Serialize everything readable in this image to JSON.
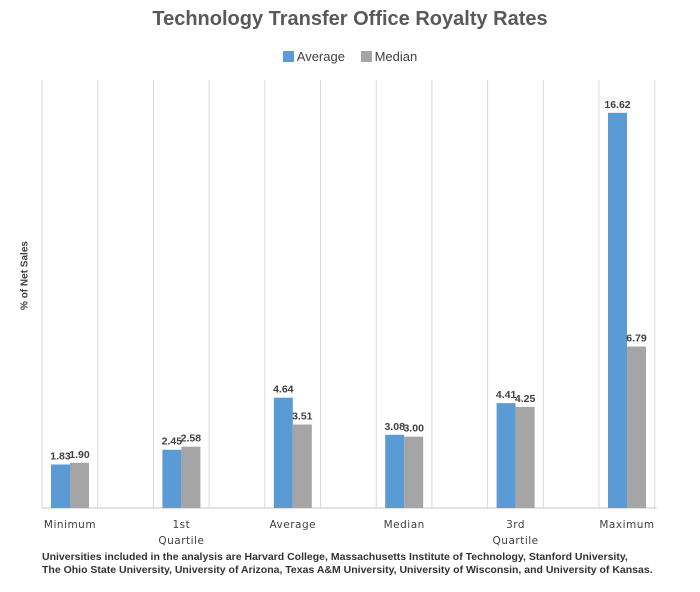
{
  "chart_data": {
    "type": "bar",
    "title": "Technology Transfer Office Royalty Rates",
    "ylabel": "% of Net Sales",
    "xlabel": "",
    "ylim": [
      0,
      18
    ],
    "grid": "vertical",
    "legend_position": "top",
    "categories": [
      [
        "Minimum"
      ],
      [
        "1st",
        "Quartile"
      ],
      [
        "Average"
      ],
      [
        "Median"
      ],
      [
        "3rd",
        "Quartile"
      ],
      [
        "Maximum"
      ]
    ],
    "series": [
      {
        "name": "Average",
        "color": "#5B9BD5",
        "values": [
          1.83,
          2.45,
          4.64,
          3.08,
          4.41,
          16.62
        ],
        "labels": [
          "1.83",
          "2.45",
          "4.64",
          "3.08",
          "4.41",
          "16.62"
        ]
      },
      {
        "name": "Median",
        "color": "#A5A5A5",
        "values": [
          1.9,
          2.58,
          3.51,
          3.0,
          4.25,
          6.79
        ],
        "labels": [
          "1.90",
          "2.58",
          "3.51",
          "3.00",
          "4.25",
          "6.79"
        ]
      }
    ]
  },
  "footnote": "Universities included in the analysis are Harvard College, Massachusetts Institute of Technology, Stanford University,\nThe Ohio State University, University of Arizona, Texas A&M University, University of Wisconsin, and University of Kansas."
}
